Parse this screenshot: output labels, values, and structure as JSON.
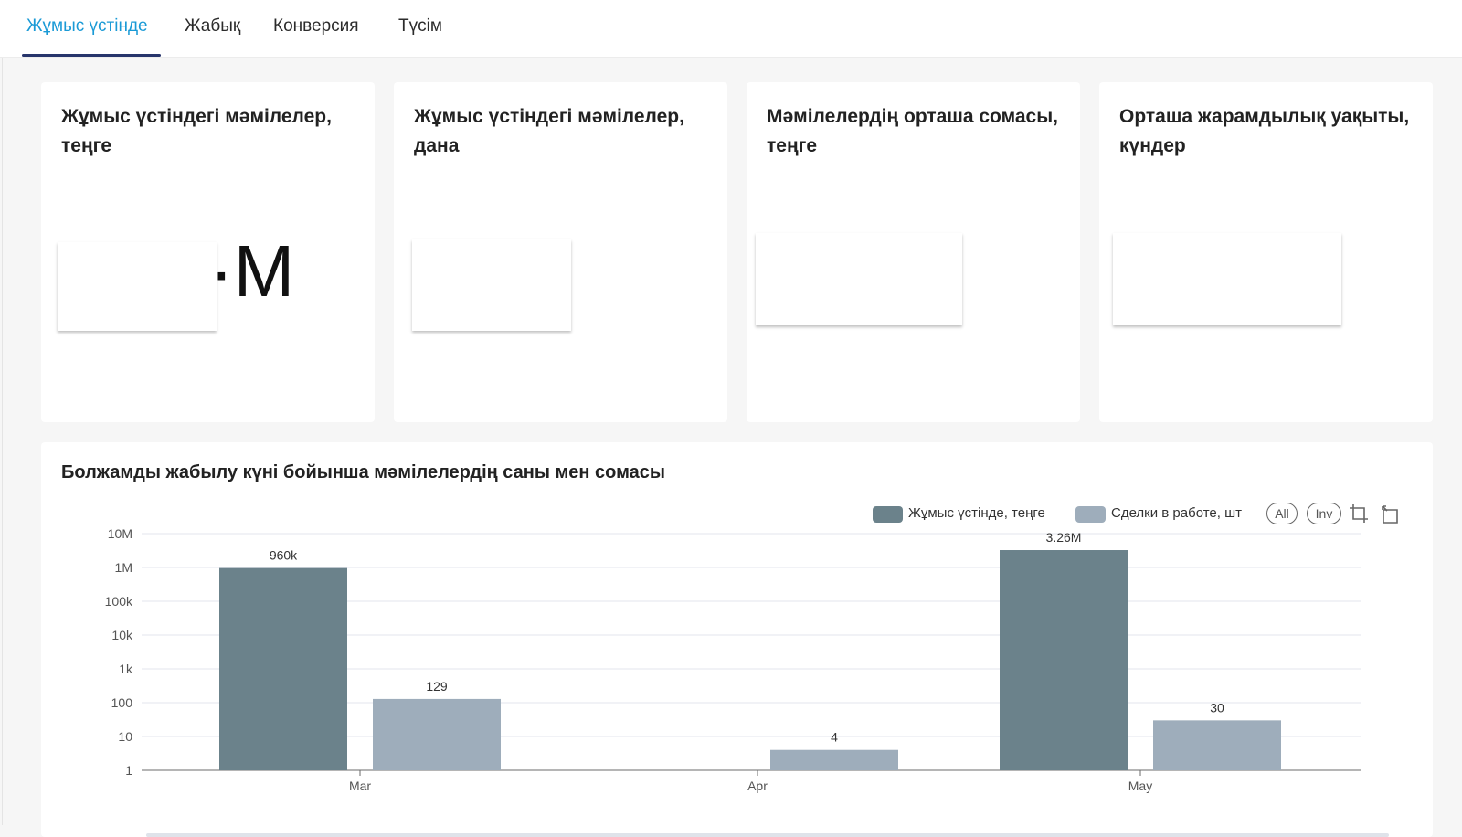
{
  "tabs": [
    {
      "label": "Жұмыс үстінде",
      "active": true
    },
    {
      "label": "Жабық",
      "active": false
    },
    {
      "label": "Конверсия",
      "active": false
    },
    {
      "label": "Түсім",
      "active": false
    }
  ],
  "kpis": [
    {
      "title": "Жұмыс үстіндегі мәмілелер, теңге",
      "value": "·M"
    },
    {
      "title": "Жұмыс үстіндегі мәмілелер, дана",
      "value": ""
    },
    {
      "title": "Мәмілелердің орташа сомасы, теңге",
      "value": ""
    },
    {
      "title": "Орташа жарамдылық уақыты, күндер",
      "value": ""
    }
  ],
  "chart": {
    "title": "Болжамды жабылу күні бойынша мәмілелердің саны мен сомасы",
    "legend": [
      {
        "label": "Жұмыс үстінде, теңге",
        "color": "#6b828b"
      },
      {
        "label": "Сделки в работе, шт",
        "color": "#9eadbb"
      }
    ],
    "controls": {
      "all_label": "All",
      "inv_label": "Inv"
    },
    "icons": [
      "crop-icon",
      "reset-icon"
    ]
  },
  "chart_data": {
    "type": "bar",
    "scale": "log",
    "ylim": [
      1,
      10000000
    ],
    "yticks": [
      "10M",
      "1M",
      "100k",
      "10k",
      "1k",
      "100",
      "10",
      "1"
    ],
    "categories": [
      "Mar",
      "Apr",
      "May"
    ],
    "series": [
      {
        "name": "Жұмыс үстінде, теңге",
        "color": "#6b828b",
        "values": [
          960000,
          null,
          3260000
        ],
        "labels": [
          "960k",
          "",
          "3.26M"
        ]
      },
      {
        "name": "Сделки в работе, шт",
        "color": "#9eadbb",
        "values": [
          129,
          4,
          30
        ],
        "labels": [
          "129",
          "4",
          "30"
        ]
      }
    ],
    "grid": true,
    "legend_position": "top-right"
  }
}
